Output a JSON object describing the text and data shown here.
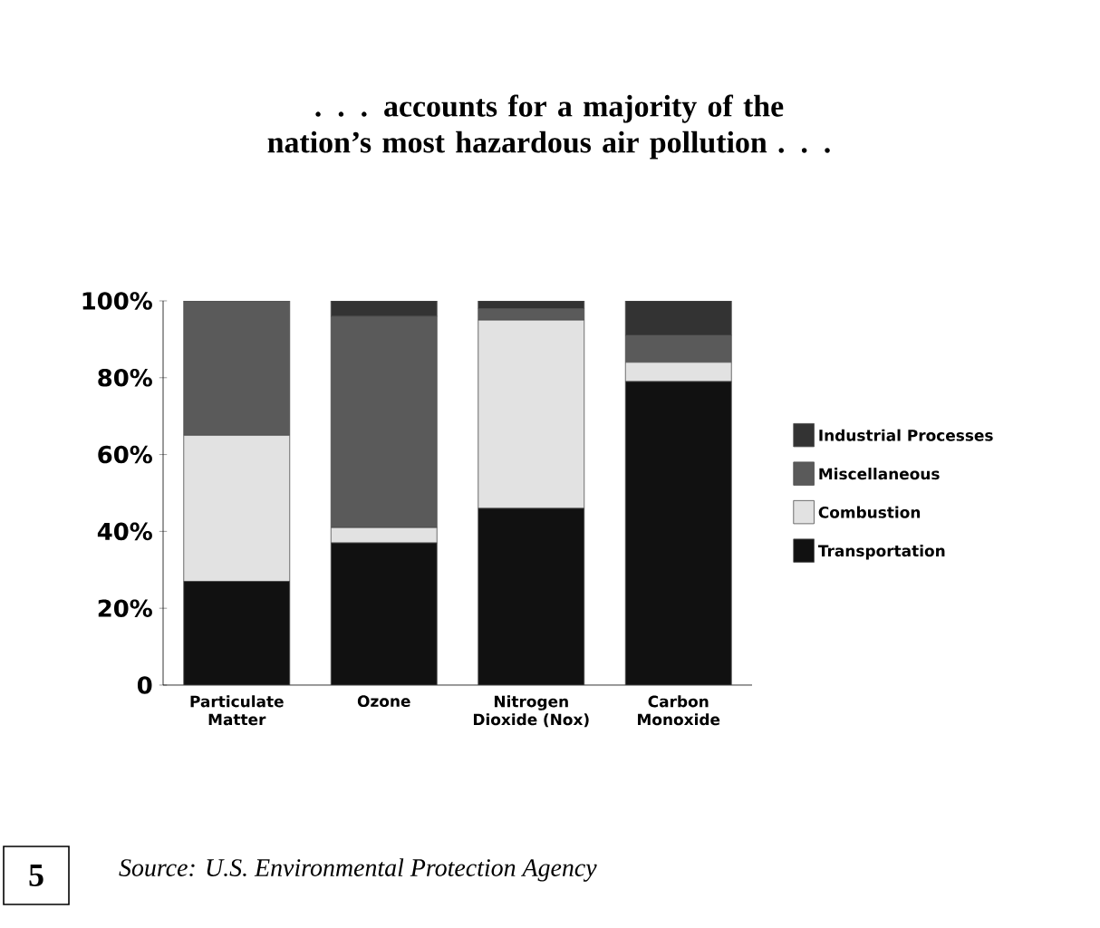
{
  "chart_data": {
    "type": "bar",
    "stacked": true,
    "title": ". . . accounts for a majority of the nation’s most hazardous air pollution . . .",
    "categories": [
      "Particulate Matter",
      "Ozone",
      "Nitrogen Dioxide (Nox)",
      "Carbon Monoxide"
    ],
    "series": [
      {
        "name": "Transportation",
        "color": "#111111",
        "values": [
          27,
          37,
          46,
          79
        ]
      },
      {
        "name": "Combustion",
        "color": "#e2e2e2",
        "values": [
          38,
          4,
          49,
          5
        ]
      },
      {
        "name": "Miscellaneous",
        "color": "#5a5a5a",
        "values": [
          35,
          55,
          3,
          7
        ]
      },
      {
        "name": "Industrial Processes",
        "color": "#333333",
        "values": [
          0,
          4,
          2,
          9
        ]
      }
    ],
    "ylim": [
      0,
      100
    ],
    "yticks": [
      {
        "value": 0,
        "label": "0"
      },
      {
        "value": 20,
        "label": "20%"
      },
      {
        "value": 40,
        "label": "40%"
      },
      {
        "value": 60,
        "label": "60%"
      },
      {
        "value": 80,
        "label": "80%"
      },
      {
        "value": 100,
        "label": "100%"
      }
    ],
    "legend": "right",
    "annotations": [
      "5",
      "Source: U.S. Environmental Protection Agency"
    ]
  }
}
